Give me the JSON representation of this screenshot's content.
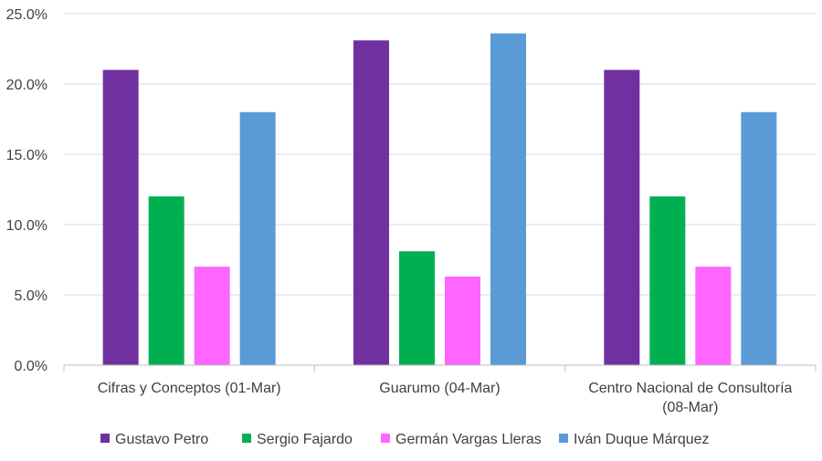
{
  "chart_data": {
    "type": "bar",
    "title": "",
    "xlabel": "",
    "ylabel": "",
    "categories": [
      [
        "Cifras y Conceptos (01-Mar)"
      ],
      [
        "Guarumo (04-Mar)"
      ],
      [
        "Centro Nacional de Consultoría",
        "(08-Mar)"
      ]
    ],
    "series": [
      {
        "name": "Gustavo Petro",
        "color": "#7030A0",
        "values": [
          21.0,
          23.1,
          21.0
        ]
      },
      {
        "name": "Sergio Fajardo",
        "color": "#00B050",
        "values": [
          12.0,
          8.1,
          12.0
        ]
      },
      {
        "name": "Germán Vargas Lleras",
        "color": "#FF66FF",
        "values": [
          7.0,
          6.3,
          7.0
        ]
      },
      {
        "name": "Iván Duque Márquez",
        "color": "#5B9BD5",
        "values": [
          18.0,
          23.6,
          18.0
        ]
      }
    ],
    "ylim": [
      0,
      25
    ],
    "yticks": [
      0,
      5,
      10,
      15,
      20,
      25
    ],
    "ytick_labels": [
      "0.0%",
      "5.0%",
      "10.0%",
      "15.0%",
      "20.0%",
      "25.0%"
    ],
    "grid": true,
    "gridline_color": "#d9d9d9",
    "legend_position": "bottom"
  }
}
